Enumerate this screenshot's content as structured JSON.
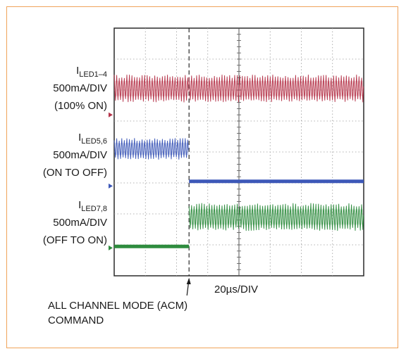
{
  "chart_data": {
    "type": "line",
    "title": "",
    "xlabel": "20µs/DIV",
    "x_divisions": 8,
    "y_divisions": 8,
    "grid": true,
    "command_marker": {
      "x_div": 2.4,
      "text_lines": [
        "ALL CHANNEL MODE (ACM)",
        "COMMAND"
      ]
    },
    "series": [
      {
        "label_main": "I",
        "label_sub": "LED1–4",
        "label_lines": [
          "500mA/DIV",
          "(100% ON)"
        ],
        "color": "#b5344a",
        "zero_div": 5.2,
        "before": {
          "state": "ripple",
          "center_div": 6.05,
          "amplitude_div": 0.45
        },
        "after": {
          "state": "ripple",
          "center_div": 6.05,
          "amplitude_div": 0.45
        }
      },
      {
        "label_main": "I",
        "label_sub": "LED5,6",
        "label_lines": [
          "500mA/DIV",
          "(ON TO OFF)"
        ],
        "color": "#3d58b8",
        "zero_div": 2.9,
        "before": {
          "state": "ripple",
          "center_div": 4.1,
          "amplitude_div": 0.35
        },
        "after": {
          "state": "flat",
          "level_div": 3.05
        }
      },
      {
        "label_main": "I",
        "label_sub": "LED7,8",
        "label_lines": [
          "500mA/DIV",
          "(OFF TO ON)"
        ],
        "color": "#2e8c3e",
        "zero_div": 0.9,
        "before": {
          "state": "flat",
          "level_div": 0.95
        },
        "after": {
          "state": "ripple",
          "center_div": 1.9,
          "amplitude_div": 0.45
        }
      }
    ]
  }
}
